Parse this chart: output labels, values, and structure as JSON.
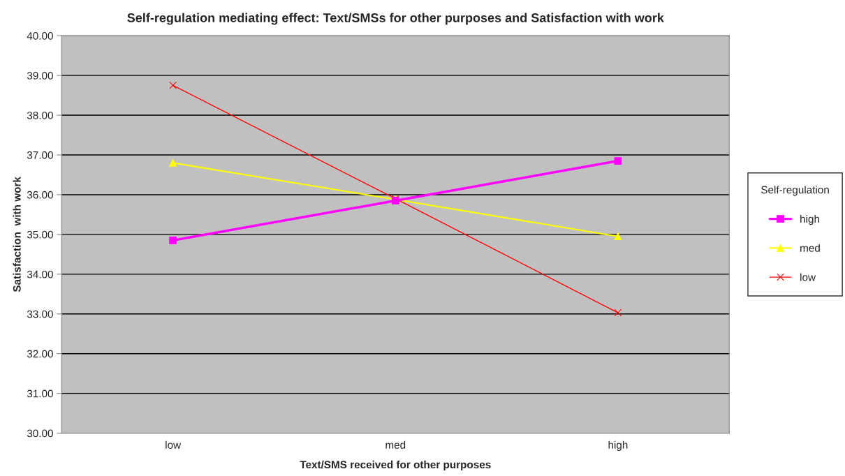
{
  "chart_data": {
    "type": "line",
    "title": "Self-regulation mediating effect: Text/SMSs for other purposes and Satisfaction with work",
    "xlabel": "Text/SMS received for other purposes",
    "ylabel": "Satisfaction  with work",
    "legend_title": "Self-regulation",
    "categories": [
      "low",
      "med",
      "high"
    ],
    "series": [
      {
        "name": "high",
        "color": "#ff00ff",
        "values": [
          34.85,
          35.85,
          36.85
        ],
        "marker": "square"
      },
      {
        "name": "med",
        "color": "#ffff00",
        "values": [
          36.8,
          35.88,
          34.95
        ],
        "marker": "triangle"
      },
      {
        "name": "low",
        "color": "#ff0000",
        "values": [
          38.75,
          35.9,
          33.03
        ],
        "marker": "cross"
      }
    ],
    "ylim": [
      30,
      40
    ],
    "yticks": [
      {
        "value": 30,
        "label": "30.00"
      },
      {
        "value": 31,
        "label": "31.00"
      },
      {
        "value": 32,
        "label": "32.00"
      },
      {
        "value": 33,
        "label": "33.00"
      },
      {
        "value": 34,
        "label": "34.00"
      },
      {
        "value": 35,
        "label": "35.00"
      },
      {
        "value": 36,
        "label": "36.00"
      },
      {
        "value": 37,
        "label": "37.00"
      },
      {
        "value": 38,
        "label": "38.00"
      },
      {
        "value": 39,
        "label": "39.00"
      },
      {
        "value": 40,
        "label": "40.00"
      }
    ],
    "grid": "y",
    "legend": "right"
  }
}
